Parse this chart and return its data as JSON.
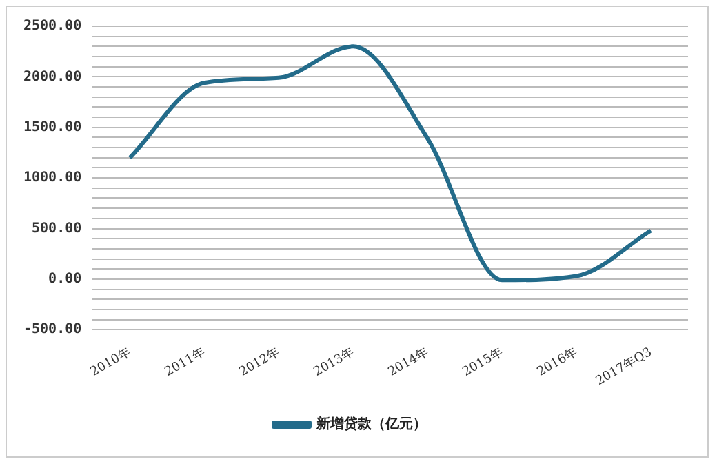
{
  "chart_data": {
    "type": "line",
    "categories": [
      "2010年",
      "2011年",
      "2012年",
      "2013年",
      "2014年",
      "2015年",
      "2016年",
      "2017年Q3"
    ],
    "series": [
      {
        "name": "新增贷款（亿元）",
        "color": "#236b8a",
        "values": [
          1200,
          1940,
          1990,
          2300,
          1390,
          -10,
          30,
          480
        ]
      }
    ],
    "ylim": [
      -500,
      2500
    ],
    "yticks": [
      {
        "value": -500,
        "label": "-500.00"
      },
      {
        "value": -400,
        "label": null
      },
      {
        "value": -300,
        "label": null
      },
      {
        "value": -200,
        "label": null
      },
      {
        "value": -100,
        "label": null
      },
      {
        "value": 0,
        "label": "0.00"
      },
      {
        "value": 100,
        "label": null
      },
      {
        "value": 200,
        "label": null
      },
      {
        "value": 300,
        "label": null
      },
      {
        "value": 400,
        "label": null
      },
      {
        "value": 500,
        "label": "500.00"
      },
      {
        "value": 600,
        "label": null
      },
      {
        "value": 700,
        "label": null
      },
      {
        "value": 800,
        "label": null
      },
      {
        "value": 900,
        "label": null
      },
      {
        "value": 1000,
        "label": "1000.00"
      },
      {
        "value": 1100,
        "label": null
      },
      {
        "value": 1200,
        "label": null
      },
      {
        "value": 1300,
        "label": null
      },
      {
        "value": 1400,
        "label": null
      },
      {
        "value": 1500,
        "label": "1500.00"
      },
      {
        "value": 1600,
        "label": null
      },
      {
        "value": 1700,
        "label": null
      },
      {
        "value": 1800,
        "label": null
      },
      {
        "value": 1900,
        "label": null
      },
      {
        "value": 2000,
        "label": "2000.00"
      },
      {
        "value": 2100,
        "label": null
      },
      {
        "value": 2200,
        "label": null
      },
      {
        "value": 2300,
        "label": null
      },
      {
        "value": 2400,
        "label": null
      },
      {
        "value": 2500,
        "label": "2500.00"
      }
    ],
    "grid": "y",
    "legend": "bottom",
    "marker": "none",
    "line_style": "solid"
  }
}
